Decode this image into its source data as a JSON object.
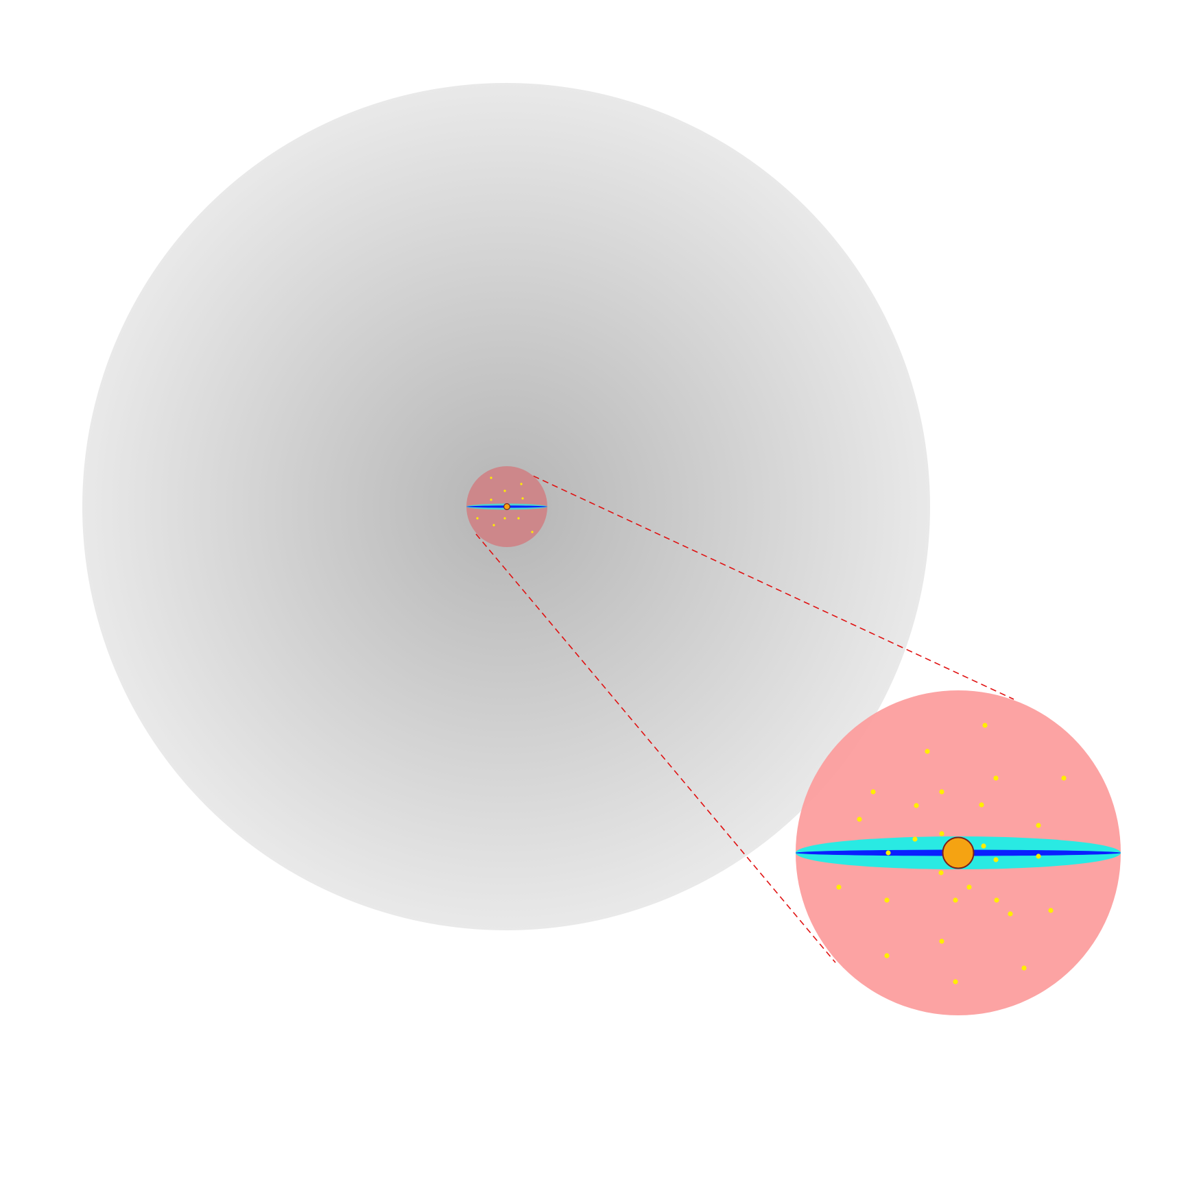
{
  "colors": {
    "background": "#ffffff",
    "halo_center": "#b5b5b5",
    "halo_edge": "#e9e9e9",
    "bulge": "#fc9c9c",
    "bulge_small": "#cd878a",
    "disk_outer": "#29eae3",
    "disk_inner": "#0a1fff",
    "core": "#f5a312",
    "core_stroke": "#7a1f1f",
    "star": "#ffee00",
    "zoom_line": "#e01010"
  },
  "legend": []
}
